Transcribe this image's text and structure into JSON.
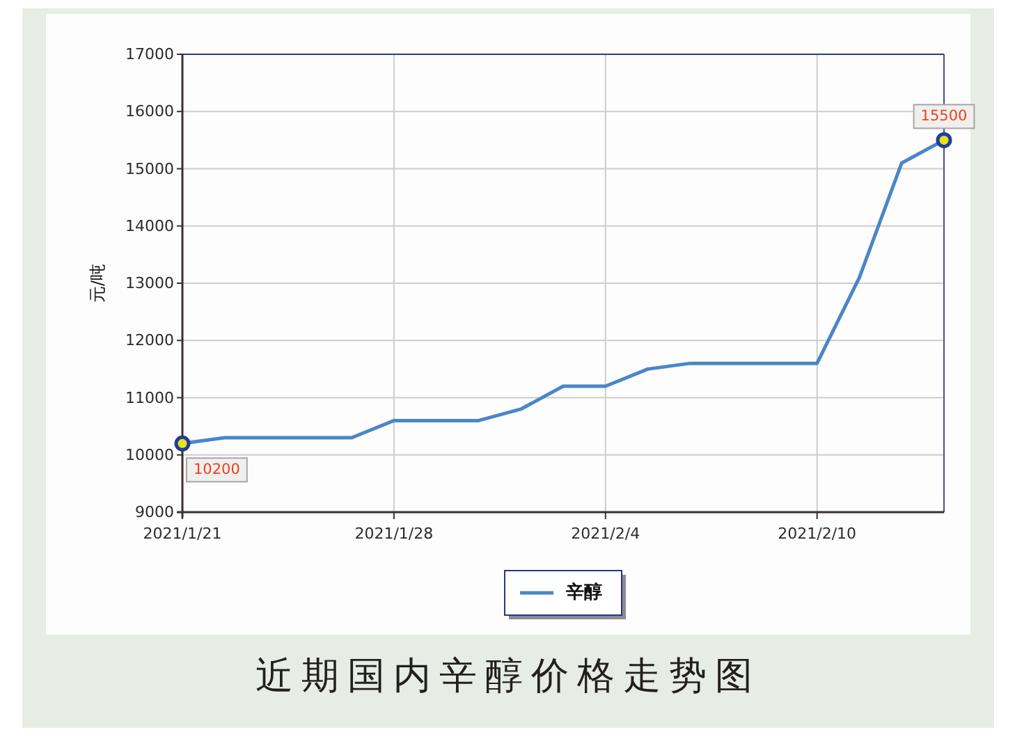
{
  "chart_data": {
    "type": "line",
    "title": "近期国内辛醇价格走势图",
    "ylabel": "元/吨",
    "categories": [
      "2021/1/21",
      null,
      null,
      null,
      null,
      "2021/1/28",
      null,
      null,
      null,
      null,
      "2021/2/4",
      null,
      null,
      null,
      null,
      "2021/2/10",
      null,
      null,
      null
    ],
    "series": [
      {
        "name": "辛醇",
        "color": "#4a86c8",
        "values": [
          10200,
          10300,
          10300,
          10300,
          10300,
          10600,
          10600,
          10600,
          10800,
          11200,
          11200,
          11500,
          11600,
          11600,
          11600,
          11600,
          13100,
          15100,
          15500
        ],
        "value_labels": [
          "10200",
          null,
          null,
          null,
          null,
          null,
          null,
          null,
          null,
          null,
          null,
          null,
          null,
          null,
          null,
          null,
          null,
          null,
          "15500"
        ]
      }
    ],
    "ylim": [
      9000,
      17000
    ],
    "yticks": [
      9000,
      10000,
      11000,
      12000,
      13000,
      14000,
      15000,
      16000,
      17000
    ],
    "grid": true,
    "legend": "bottom"
  }
}
